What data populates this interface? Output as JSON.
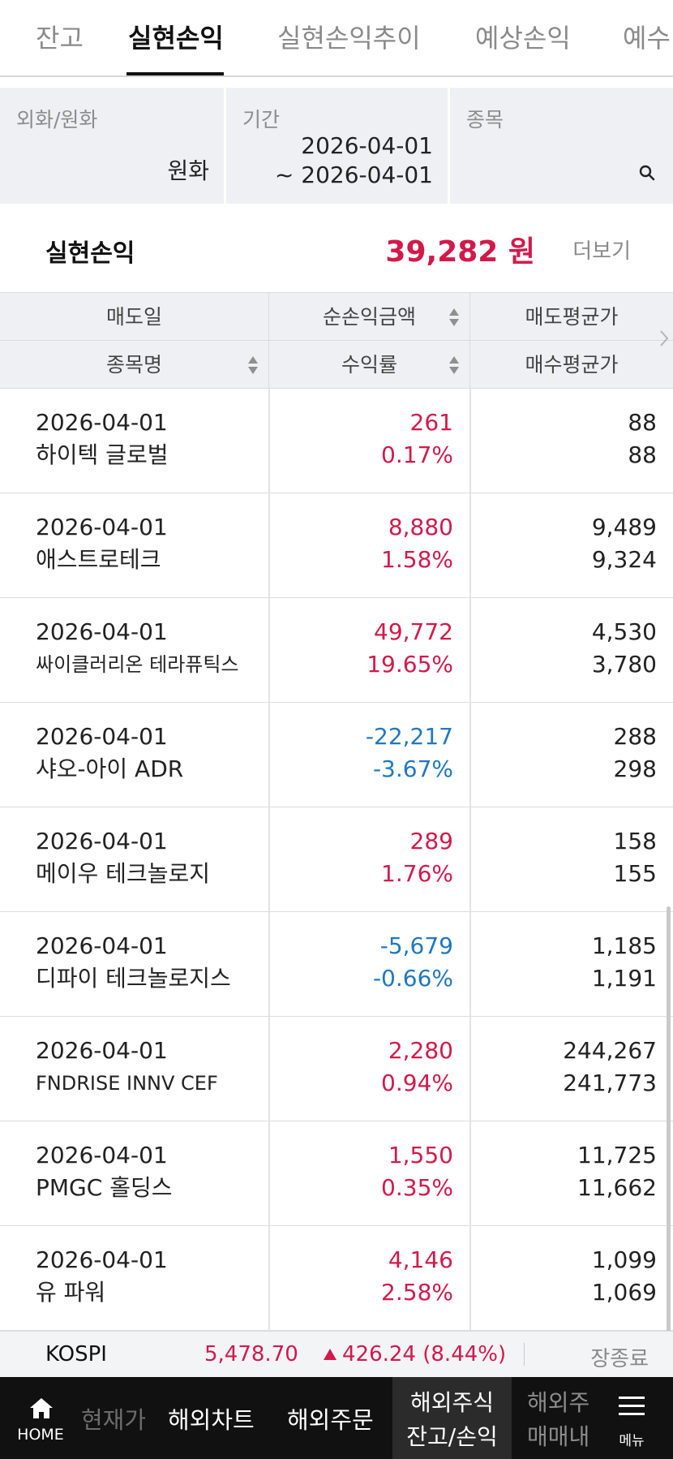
{
  "tabs": [
    {
      "label": "잔고",
      "active": false
    },
    {
      "label": "실현손익",
      "active": true
    },
    {
      "label": "실현손익추이",
      "active": false
    },
    {
      "label": "예상손익",
      "active": false
    },
    {
      "label": "예수",
      "active": false
    }
  ],
  "filters": {
    "currency": {
      "label": "외화/원화",
      "value": "원화"
    },
    "period": {
      "label": "기간",
      "start": "2026-04-01",
      "end": "~ 2026-04-01"
    },
    "stock": {
      "label": "종목",
      "icon": "search-icon"
    }
  },
  "summary": {
    "label": "실현손익",
    "amount": "39,282 원",
    "more_label": "더보기"
  },
  "table": {
    "headers": {
      "row1": [
        "매도일",
        "순손익금액",
        "매도평균가"
      ],
      "row2": [
        "종목명",
        "수익률",
        "매수평균가"
      ]
    },
    "rows": [
      {
        "date": "2026-04-01",
        "name": "하이텍 글로벌",
        "profit": "261",
        "rate": "0.17%",
        "sell_avg": "88",
        "buy_avg": "88",
        "sign": "pos"
      },
      {
        "date": "2026-04-01",
        "name": "애스트로테크",
        "profit": "8,880",
        "rate": "1.58%",
        "sell_avg": "9,489",
        "buy_avg": "9,324",
        "sign": "pos"
      },
      {
        "date": "2026-04-01",
        "name": "싸이클러리온 테라퓨틱스",
        "profit": "49,772",
        "rate": "19.65%",
        "sell_avg": "4,530",
        "buy_avg": "3,780",
        "sign": "pos"
      },
      {
        "date": "2026-04-01",
        "name": "샤오-아이 ADR",
        "profit": "-22,217",
        "rate": "-3.67%",
        "sell_avg": "288",
        "buy_avg": "298",
        "sign": "neg"
      },
      {
        "date": "2026-04-01",
        "name": "메이우 테크놀로지",
        "profit": "289",
        "rate": "1.76%",
        "sell_avg": "158",
        "buy_avg": "155",
        "sign": "pos"
      },
      {
        "date": "2026-04-01",
        "name": "디파이 테크놀로지스",
        "profit": "-5,679",
        "rate": "-0.66%",
        "sell_avg": "1,185",
        "buy_avg": "1,191",
        "sign": "neg"
      },
      {
        "date": "2026-04-01",
        "name": "FNDRISE INNV CEF",
        "profit": "2,280",
        "rate": "0.94%",
        "sell_avg": "244,267",
        "buy_avg": "241,773",
        "sign": "pos"
      },
      {
        "date": "2026-04-01",
        "name": "PMGC 홀딩스",
        "profit": "1,550",
        "rate": "0.35%",
        "sell_avg": "11,725",
        "buy_avg": "11,662",
        "sign": "pos"
      },
      {
        "date": "2026-04-01",
        "name": "유 파워",
        "profit": "4,146",
        "rate": "2.58%",
        "sell_avg": "1,099",
        "buy_avg": "1,069",
        "sign": "pos"
      }
    ]
  },
  "ticker": {
    "name": "KOSPI",
    "value": "5,478.70",
    "change": "426.24 (8.44%)",
    "status": "장종료"
  },
  "bottom_nav": {
    "home_label": "HOME",
    "items": [
      "현재가",
      "해외차트",
      "해외주문"
    ],
    "active": {
      "line1": "해외주식",
      "line2": "잔고/손익"
    },
    "partial": {
      "line1": "해외주",
      "line2": "매매내"
    },
    "menu_label": "메뉴"
  },
  "colors": {
    "positive": "#d3194a",
    "negative": "#1f78c1",
    "accent": "#111111"
  }
}
